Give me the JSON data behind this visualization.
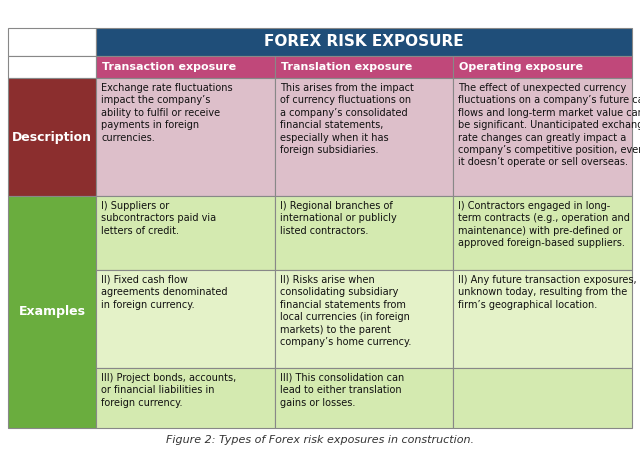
{
  "title": "FOREX RISK EXPOSURE",
  "title_bg": "#1F4E79",
  "title_color": "#FFFFFF",
  "col_headers": [
    "Transaction exposure",
    "Translation exposure",
    "Operating exposure"
  ],
  "col_header_bg": "#C0487A",
  "col_header_color": "#FFFFFF",
  "row_header_bg_desc": "#8B2E2E",
  "row_header_bg_ex": "#6AAD3E",
  "row_header_color": "#FFFFFF",
  "desc_cell_bg": "#DDBFCA",
  "ex_light_bg": "#D4EAB0",
  "ex_lighter_bg": "#E4F2C8",
  "border_color": "#888888",
  "description_cells": [
    "Exchange rate fluctuations\nimpact the company’s\nability to fulfil or receive\npayments in foreign\ncurrencies.",
    "This arises from the impact\nof currency fluctuations on\na company’s consolidated\nfinancial statements,\nespecially when it has\nforeign subsidiaries.",
    "The effect of unexpected currency\nfluctuations on a company’s future cash\nflows and long-term market value can\nbe significant. Unanticipated exchange\nrate changes can greatly impact a\ncompany’s competitive position, even if\nit doesn’t operate or sell overseas."
  ],
  "example1_cells": [
    "I) Suppliers or\nsubcontractors paid via\nletters of credit.",
    "I) Regional branches of\ninternational or publicly\nlisted contractors.",
    "I) Contractors engaged in long-\nterm contracts (e.g., operation and\nmaintenance) with pre-defined or\napproved foreign-based suppliers."
  ],
  "example2_cells": [
    "II) Fixed cash flow\nagreements denominated\nin foreign currency.",
    "II) Risks arise when\nconsolidating subsidiary\nfinancial statements from\nlocal currencies (in foreign\nmarkets) to the parent\ncompany’s home currency.",
    "II) Any future transaction exposures,\nunknown today, resulting from the\nfirm’s geographical location."
  ],
  "example3_cells": [
    "III) Project bonds, accounts,\nor financial liabilities in\nforeign currency.",
    "III) This consolidation can\nlead to either translation\ngains or losses.",
    ""
  ],
  "fig_caption": "Figure 2: Types of Forex risk exposures in construction."
}
